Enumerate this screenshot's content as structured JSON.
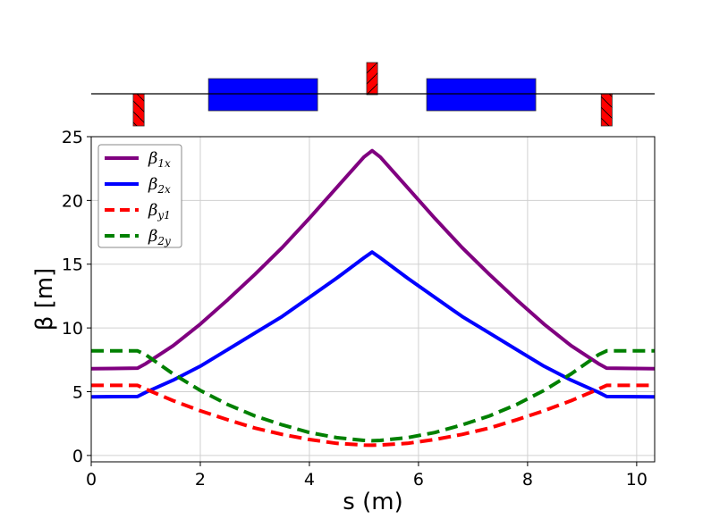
{
  "chart_data": {
    "type": "line",
    "title": "",
    "xlabel": "s (m)",
    "ylabel": "β [m]",
    "xlim": [
      0,
      10.33
    ],
    "ylim": [
      -0.5,
      25
    ],
    "xticks": [
      "0",
      "2",
      "4",
      "6",
      "8",
      "10"
    ],
    "yticks": [
      "0",
      "5",
      "10",
      "15",
      "20",
      "25"
    ],
    "grid": true,
    "legend_position": "top-left",
    "x": [
      0,
      0.85,
      1,
      1.5,
      2,
      2.5,
      3,
      3.5,
      4,
      4.5,
      5,
      5.15,
      5.3,
      5.8,
      6.3,
      6.8,
      7.3,
      7.8,
      8.3,
      8.8,
      9.3,
      9.45,
      10.33
    ],
    "series": [
      {
        "name": "β",
        "sub": "1x",
        "color": "#800080",
        "style": "solid",
        "values": [
          6.8,
          6.85,
          7.2,
          8.6,
          10.3,
          12.2,
          14.2,
          16.3,
          18.6,
          21.0,
          23.4,
          23.9,
          23.4,
          21.0,
          18.6,
          16.3,
          14.2,
          12.2,
          10.3,
          8.6,
          7.2,
          6.85,
          6.8
        ]
      },
      {
        "name": "β",
        "sub": "2x",
        "color": "#0000ff",
        "style": "solid",
        "values": [
          4.6,
          4.62,
          4.95,
          5.9,
          7.0,
          8.3,
          9.6,
          10.9,
          12.4,
          13.9,
          15.5,
          15.95,
          15.5,
          13.9,
          12.4,
          10.9,
          9.6,
          8.3,
          7.0,
          5.9,
          4.95,
          4.62,
          4.6
        ]
      },
      {
        "name": "β",
        "sub": "y1",
        "color": "#ff0000",
        "style": "dashed",
        "values": [
          5.5,
          5.5,
          5.2,
          4.3,
          3.5,
          2.8,
          2.15,
          1.65,
          1.25,
          0.95,
          0.82,
          0.8,
          0.82,
          0.95,
          1.25,
          1.65,
          2.15,
          2.8,
          3.5,
          4.3,
          5.2,
          5.5,
          5.5
        ]
      },
      {
        "name": "β",
        "sub": "2y",
        "color": "#008000",
        "style": "dashed",
        "values": [
          8.2,
          8.2,
          7.9,
          6.4,
          5.1,
          4.0,
          3.1,
          2.4,
          1.8,
          1.4,
          1.18,
          1.15,
          1.18,
          1.4,
          1.8,
          2.4,
          3.1,
          4.0,
          5.1,
          6.4,
          7.9,
          8.2,
          8.2
        ]
      }
    ],
    "lattice": [
      {
        "type": "quadrupole",
        "s": [
          0.77,
          0.97
        ],
        "side": "below",
        "color": "#ff0000"
      },
      {
        "type": "dipole",
        "s": [
          2.15,
          4.15
        ],
        "color": "#0000ff"
      },
      {
        "type": "quadrupole",
        "s": [
          5.05,
          5.25
        ],
        "side": "above",
        "color": "#ff0000"
      },
      {
        "type": "dipole",
        "s": [
          6.15,
          8.15
        ],
        "color": "#0000ff"
      },
      {
        "type": "quadrupole",
        "s": [
          9.35,
          9.55
        ],
        "side": "below",
        "color": "#ff0000"
      }
    ]
  }
}
